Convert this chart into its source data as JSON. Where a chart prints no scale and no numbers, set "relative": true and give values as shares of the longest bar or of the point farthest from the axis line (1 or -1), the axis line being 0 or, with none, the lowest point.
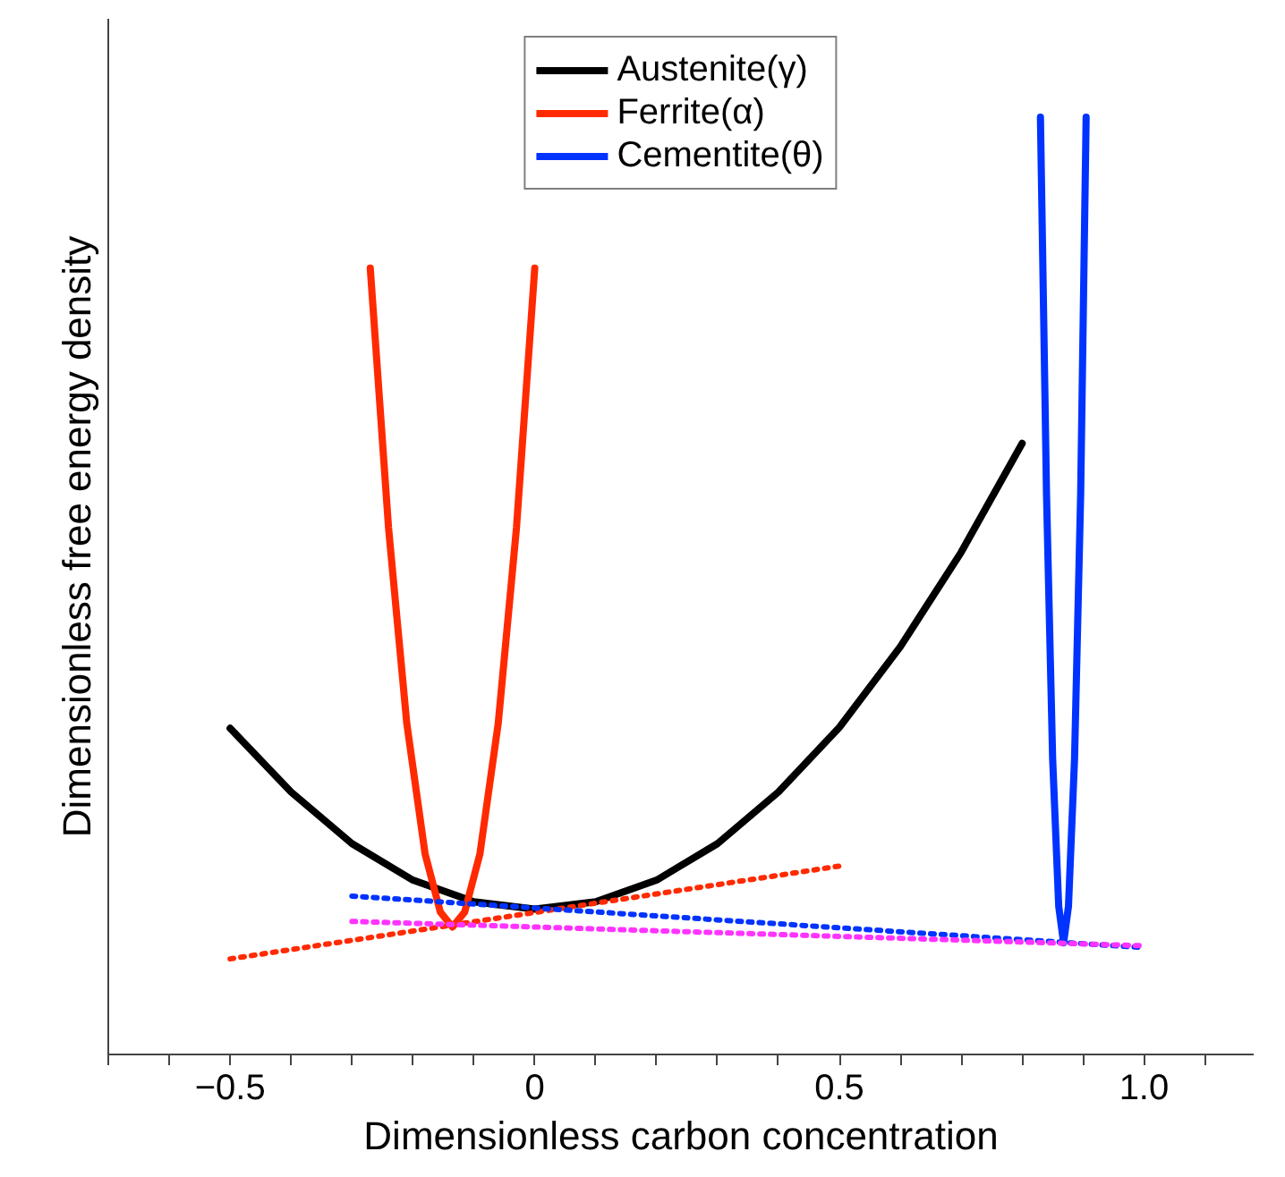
{
  "chart_data": {
    "type": "line",
    "relative": true,
    "xlabel": "Dimensionless carbon concentration",
    "ylabel": "Dimensionless free energy density",
    "xlim": [
      -0.7,
      1.18
    ],
    "xticks": [
      {
        "value": -0.7,
        "label": null
      },
      {
        "value": -0.6,
        "label": null
      },
      {
        "value": -0.5,
        "label": "−0.5"
      },
      {
        "value": -0.4,
        "label": null
      },
      {
        "value": -0.3,
        "label": null
      },
      {
        "value": -0.2,
        "label": null
      },
      {
        "value": -0.1,
        "label": null
      },
      0,
      {
        "value": 0.1,
        "label": null
      },
      {
        "value": 0.2,
        "label": null
      },
      {
        "value": 0.3,
        "label": null
      },
      {
        "value": 0.4,
        "label": null
      },
      0.5,
      {
        "value": 0.6,
        "label": null
      },
      {
        "value": 0.7,
        "label": null
      },
      {
        "value": 0.8,
        "label": null
      },
      {
        "value": 0.9,
        "label": null
      },
      {
        "value": 1.0,
        "label": "1.0"
      },
      {
        "value": 1.1,
        "label": null
      }
    ],
    "tick_labels": "x",
    "grid": false,
    "legend": "top",
    "line_style": "solid",
    "series": [
      {
        "name": "Austenite(γ)",
        "color": "#000000",
        "x": [
          -0.5,
          -0.4,
          -0.3,
          -0.2,
          -0.1,
          0,
          0.1,
          0.2,
          0.3,
          0.4,
          0.5,
          0.6,
          0.7,
          0.8
        ],
        "values": [
          0.348,
          0.28,
          0.225,
          0.186,
          0.163,
          0.155,
          0.163,
          0.186,
          0.225,
          0.28,
          0.349,
          0.435,
          0.536,
          0.652
        ]
      },
      {
        "name": "Ferrite(α)",
        "color": "#ff2a00",
        "x": [
          -0.27,
          -0.24,
          -0.21,
          -0.18,
          -0.155,
          -0.135,
          -0.115,
          -0.09,
          -0.06,
          -0.03,
          0
        ],
        "values": [
          0.839,
          0.562,
          0.353,
          0.214,
          0.152,
          0.136,
          0.152,
          0.214,
          0.353,
          0.562,
          0.839
        ]
      },
      {
        "name": "Cementite(θ)",
        "color": "#0033ff",
        "x": [
          0.83,
          0.84,
          0.85,
          0.86,
          0.868,
          0.876,
          0.886,
          0.896,
          0.905
        ],
        "values": [
          1.0,
          0.597,
          0.316,
          0.158,
          0.119,
          0.158,
          0.316,
          0.597,
          1.0
        ]
      },
      {
        "color": "#ff2a00",
        "line_style": "dotted",
        "x": [
          -0.5,
          0.5
        ],
        "values": [
          0.102,
          0.201
        ]
      },
      {
        "color": "#0033ff",
        "line_style": "dotted",
        "x": [
          -0.3,
          1.0
        ],
        "values": [
          0.169,
          0.114
        ]
      },
      {
        "color": "#ff33ff",
        "line_style": "dotted",
        "x": [
          -0.3,
          1.0
        ],
        "values": [
          0.142,
          0.116
        ]
      }
    ]
  }
}
